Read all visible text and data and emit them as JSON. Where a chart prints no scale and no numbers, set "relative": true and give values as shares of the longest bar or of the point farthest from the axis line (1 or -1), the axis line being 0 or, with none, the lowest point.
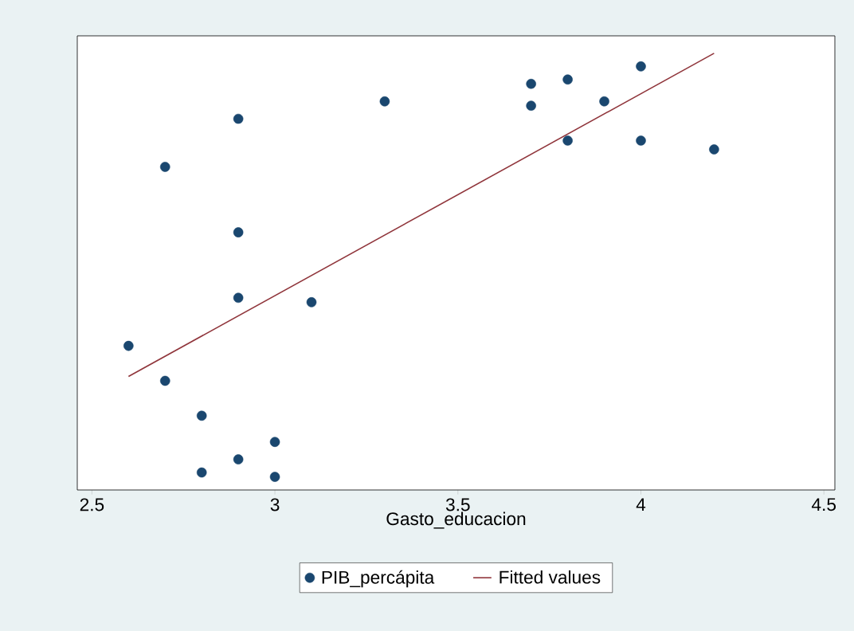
{
  "chart_data": {
    "type": "scatter",
    "xlabel": "Gasto_educacion",
    "relative": true,
    "xlim": [
      2.46,
      4.53
    ],
    "xticks": [
      2.5,
      3,
      3.5,
      4,
      4.5
    ],
    "legend": "bottom",
    "series": [
      {
        "name": "PIB_percápita",
        "type": "scatter",
        "color": "#1a476f",
        "marker": "circle",
        "x": [
          2.6,
          2.7,
          2.7,
          2.8,
          2.8,
          2.9,
          2.9,
          2.9,
          2.9,
          3.0,
          3.0,
          3.1,
          3.3,
          3.7,
          3.7,
          3.8,
          3.8,
          3.9,
          4.0,
          4.0,
          4.2
        ],
        "values": [
          0.33,
          0.74,
          0.25,
          0.17,
          0.04,
          0.85,
          0.59,
          0.44,
          0.07,
          0.11,
          0.03,
          0.43,
          0.89,
          0.93,
          0.88,
          0.94,
          0.8,
          0.89,
          0.97,
          0.8,
          0.78
        ]
      },
      {
        "name": "Fitted values",
        "type": "line",
        "color": "#90353b",
        "marker": "none",
        "x": [
          2.6,
          4.2
        ],
        "values": [
          0.26,
          1.0
        ]
      }
    ]
  }
}
